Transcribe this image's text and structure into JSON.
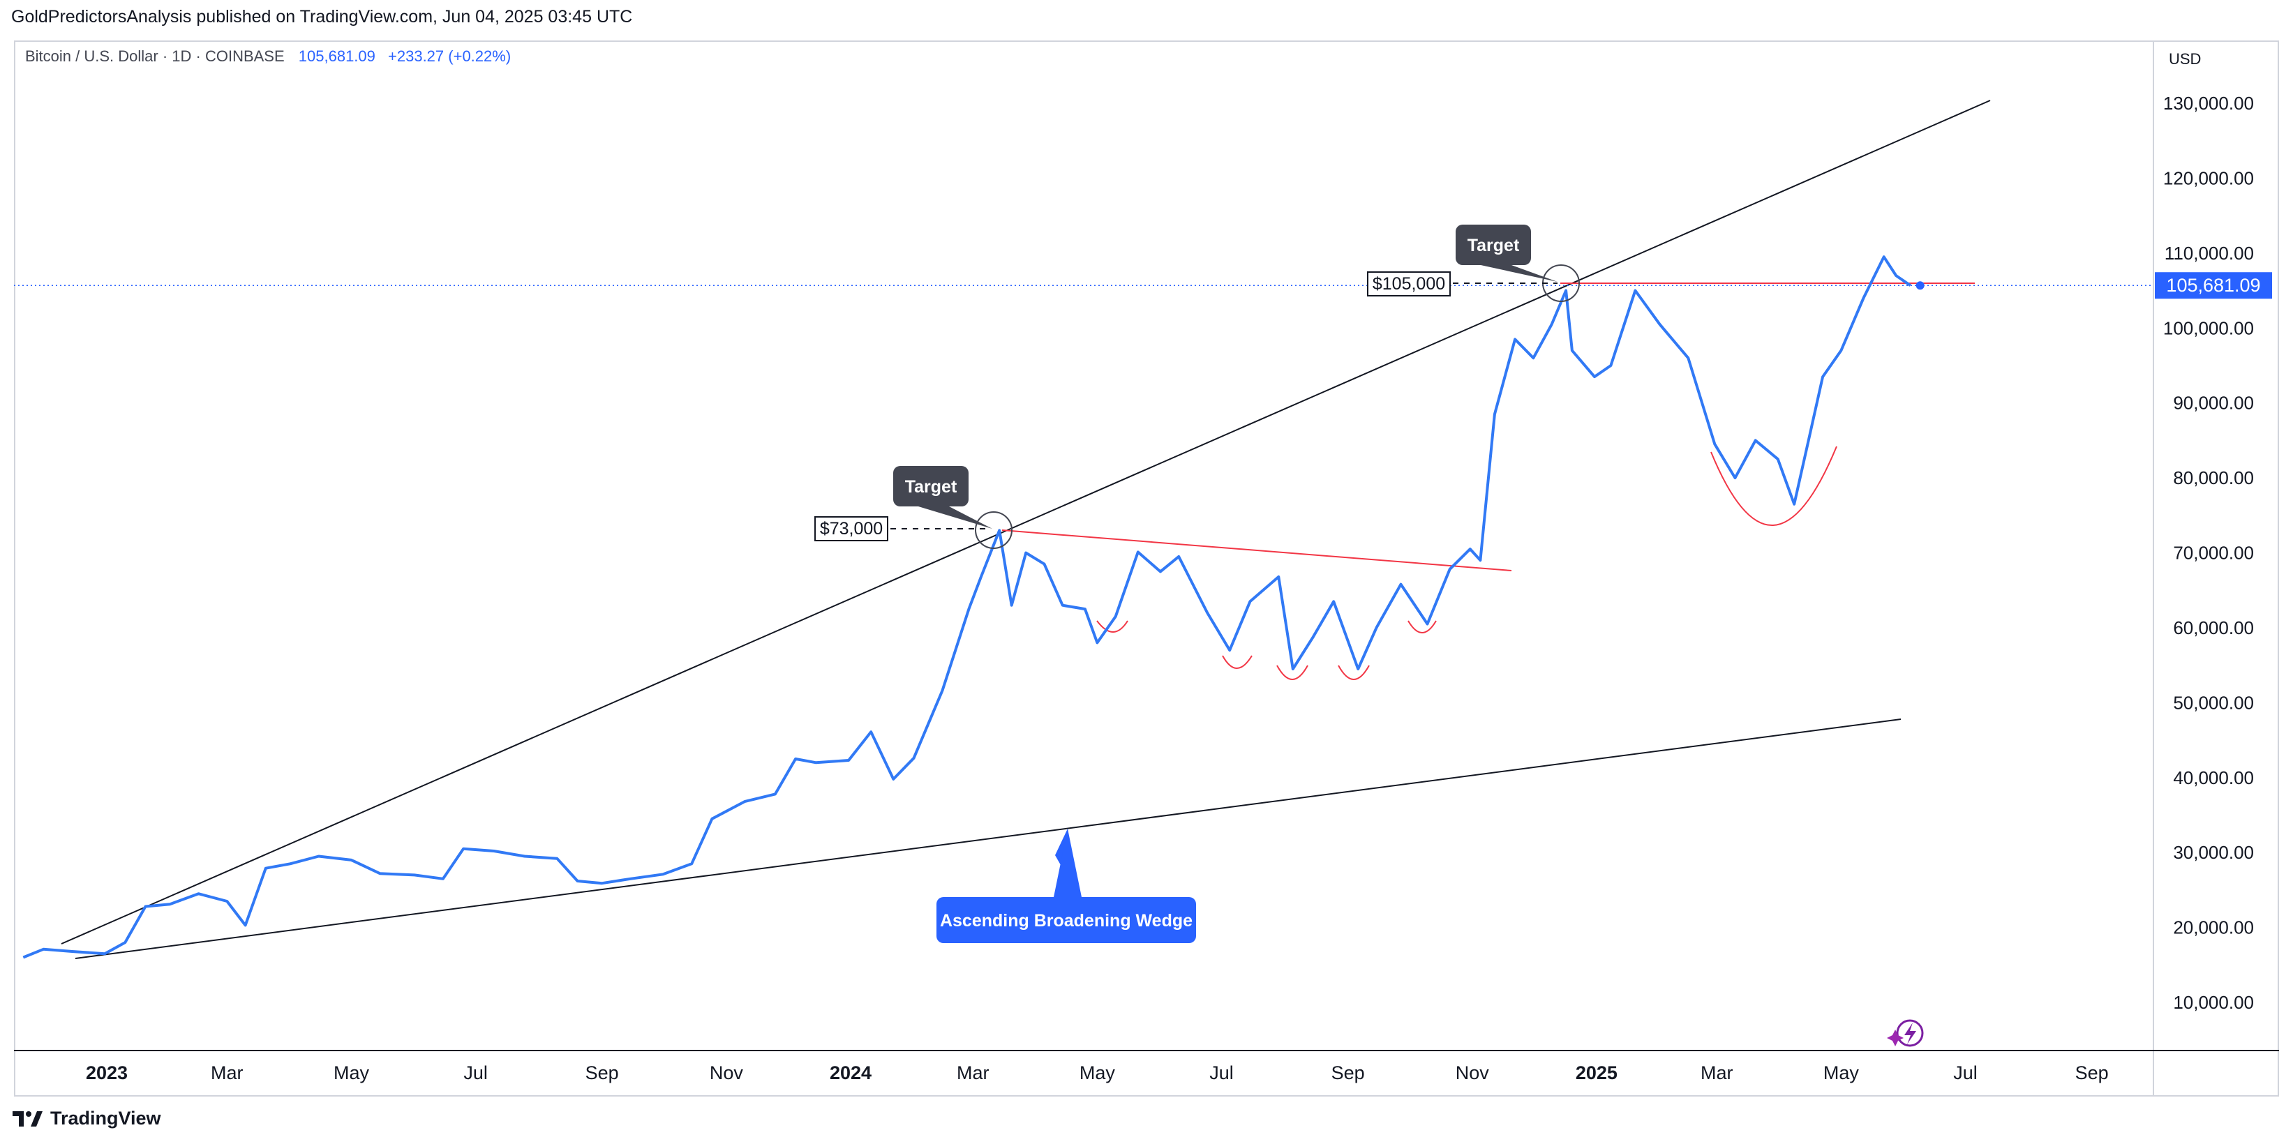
{
  "publisher": "GoldPredictorsAnalysis published on TradingView.com, Jun 04, 2025 03:45 UTC",
  "legend": {
    "symbol": "Bitcoin / U.S. Dollar · 1D · COINBASE",
    "price": "105,681.09",
    "change": "+233.27 (+0.22%)"
  },
  "currency": "USD",
  "current_price_label": "105,681.09",
  "footer": {
    "brand": "TradingView"
  },
  "colors": {
    "line": "#3179f5",
    "accent": "#2962ff",
    "pattern": "#f23645",
    "trend": "#131722",
    "callout": "#434651"
  },
  "chart_data": {
    "type": "line",
    "title": "Bitcoin / U.S. Dollar · 1D · COINBASE",
    "xlabel": "",
    "ylabel": "",
    "ylim": [
      0,
      140000
    ],
    "x_ticks": [
      "2023",
      "Mar",
      "May",
      "Jul",
      "Sep",
      "Nov",
      "2024",
      "Mar",
      "May",
      "Jul",
      "Sep",
      "Nov",
      "2025",
      "Mar",
      "May",
      "Jul",
      "Sep"
    ],
    "y_ticks": [
      "130,000.00",
      "120,000.00",
      "110,000.00",
      "100,000.00",
      "90,000.00",
      "80,000.00",
      "70,000.00",
      "60,000.00",
      "50,000.00",
      "40,000.00",
      "30,000.00",
      "20,000.00",
      "10,000.00"
    ],
    "y_tick_values": [
      130000,
      120000,
      110000,
      100000,
      90000,
      80000,
      70000,
      60000,
      50000,
      40000,
      30000,
      20000,
      10000
    ],
    "grid": false,
    "series": [
      {
        "x": [
          "2022-11-21",
          "2022-12-01",
          "2022-12-15",
          "2022-12-31",
          "2023-01-10",
          "2023-01-20",
          "2023-02-01",
          "2023-02-15",
          "2023-03-01",
          "2023-03-10",
          "2023-03-20",
          "2023-04-01",
          "2023-04-15",
          "2023-05-01",
          "2023-05-15",
          "2023-06-01",
          "2023-06-15",
          "2023-06-25",
          "2023-07-10",
          "2023-07-25",
          "2023-08-10",
          "2023-08-20",
          "2023-09-01",
          "2023-09-15",
          "2023-10-01",
          "2023-10-15",
          "2023-10-25",
          "2023-11-10",
          "2023-11-25",
          "2023-12-05",
          "2023-12-15",
          "2023-12-31",
          "2024-01-11",
          "2024-01-22",
          "2024-02-01",
          "2024-02-15",
          "2024-02-28",
          "2024-03-05",
          "2024-03-14",
          "2024-03-20",
          "2024-03-27",
          "2024-04-05",
          "2024-04-14",
          "2024-04-25",
          "2024-05-01",
          "2024-05-10",
          "2024-05-21",
          "2024-06-01",
          "2024-06-10",
          "2024-06-24",
          "2024-07-05",
          "2024-07-15",
          "2024-07-29",
          "2024-08-05",
          "2024-08-15",
          "2024-08-25",
          "2024-09-06",
          "2024-09-15",
          "2024-09-27",
          "2024-10-10",
          "2024-10-21",
          "2024-10-31",
          "2024-11-05",
          "2024-11-12",
          "2024-11-22",
          "2024-12-01",
          "2024-12-10",
          "2024-12-17",
          "2024-12-20",
          "2024-12-31",
          "2025-01-08",
          "2025-01-20",
          "2025-02-01",
          "2025-02-15",
          "2025-02-28",
          "2025-03-10",
          "2025-03-20",
          "2025-03-31",
          "2025-04-08",
          "2025-04-15",
          "2025-04-22",
          "2025-05-01",
          "2025-05-12",
          "2025-05-22",
          "2025-05-28",
          "2025-06-04"
        ],
        "y": [
          16000,
          17100,
          16800,
          16500,
          18000,
          22800,
          23100,
          24500,
          23500,
          20300,
          27900,
          28500,
          29500,
          29000,
          27200,
          27000,
          26500,
          30500,
          30200,
          29500,
          29200,
          26200,
          25900,
          26500,
          27100,
          28500,
          34500,
          36800,
          37800,
          42500,
          42000,
          42300,
          46100,
          39800,
          42600,
          51600,
          62500,
          66800,
          73000,
          63000,
          70000,
          68500,
          63000,
          62500,
          58000,
          61500,
          70100,
          67500,
          69500,
          62000,
          57000,
          63500,
          66800,
          54500,
          58800,
          63500,
          54500,
          60000,
          65800,
          60500,
          67800,
          70500,
          69000,
          88500,
          98500,
          96000,
          100500,
          105000,
          97000,
          93500,
          95000,
          105000,
          100500,
          96000,
          84500,
          80000,
          85000,
          82500,
          76500,
          85000,
          93500,
          97000,
          104000,
          109500,
          107000,
          105681
        ]
      }
    ],
    "annotations": {
      "callouts": [
        "Target",
        "Target"
      ],
      "price_labels": [
        "$73,000",
        "$105,000"
      ],
      "pattern_label": "Ascending Broadening Wedge"
    }
  }
}
